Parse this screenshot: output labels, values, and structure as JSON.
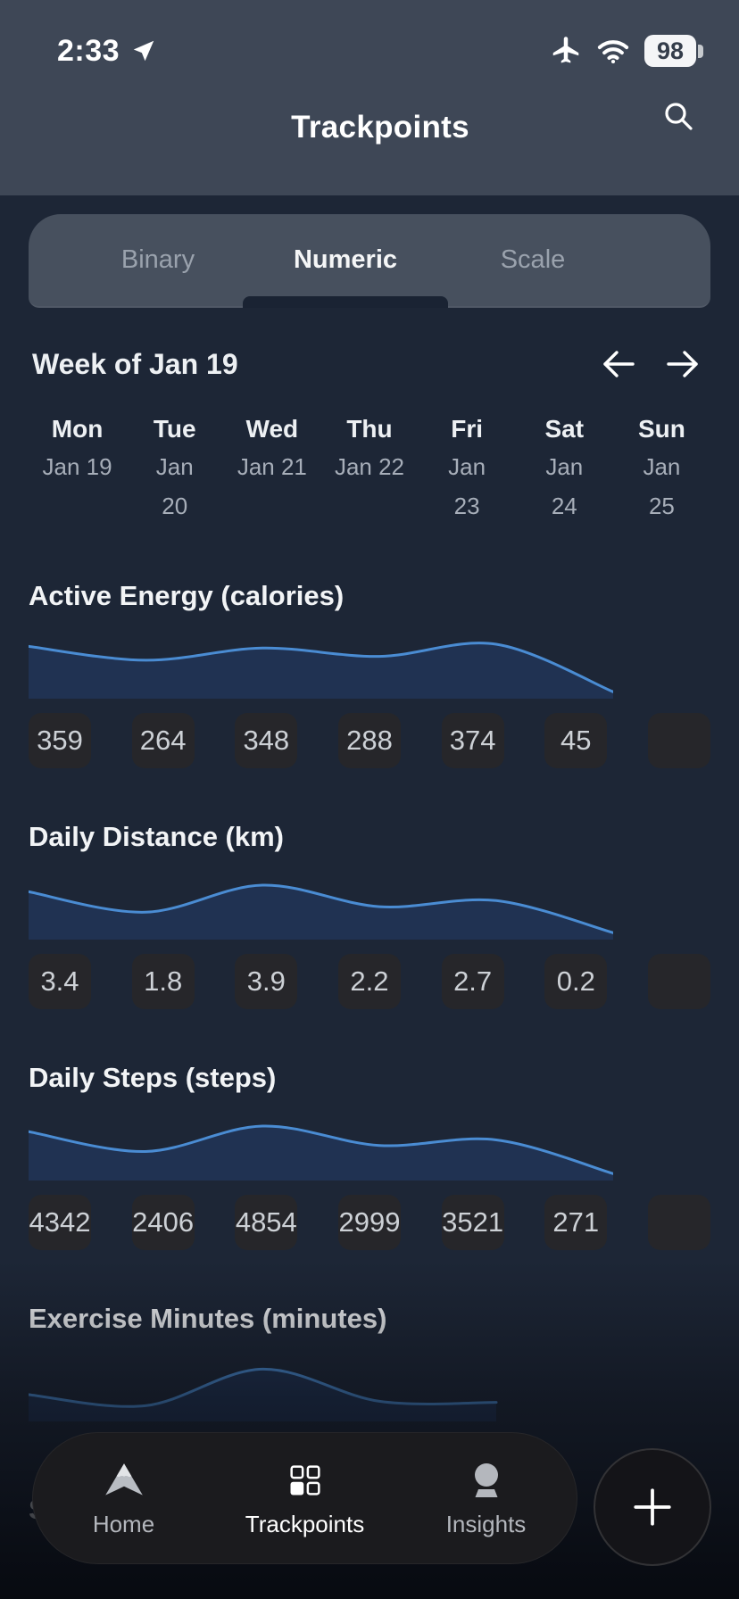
{
  "status_bar": {
    "time": "2:33",
    "battery_level": "98",
    "icons": [
      "location-arrow",
      "airplane-mode",
      "wifi",
      "battery"
    ]
  },
  "header": {
    "title": "Trackpoints",
    "search_icon": "search"
  },
  "tabs": {
    "items": [
      {
        "label": "Binary",
        "active": false
      },
      {
        "label": "Numeric",
        "active": true
      },
      {
        "label": "Scale",
        "active": false
      }
    ]
  },
  "week": {
    "title": "Week of Jan 19",
    "prev_icon": "arrow-left",
    "next_icon": "arrow-right",
    "days": [
      {
        "name": "Mon",
        "date_lines": [
          "Jan 19"
        ]
      },
      {
        "name": "Tue",
        "date_lines": [
          "Jan",
          "20"
        ]
      },
      {
        "name": "Wed",
        "date_lines": [
          "Jan 21"
        ]
      },
      {
        "name": "Thu",
        "date_lines": [
          "Jan 22"
        ]
      },
      {
        "name": "Fri",
        "date_lines": [
          "Jan",
          "23"
        ]
      },
      {
        "name": "Sat",
        "date_lines": [
          "Jan",
          "24"
        ]
      },
      {
        "name": "Sun",
        "date_lines": [
          "Jan",
          "25"
        ]
      }
    ]
  },
  "sections": [
    {
      "title": "Active Energy (calories)",
      "values": [
        "359",
        "264",
        "348",
        "288",
        "374",
        "45",
        ""
      ],
      "chart": {
        "type": "area",
        "shape": [
          0.88,
          0.63,
          0.85,
          0.7,
          0.92,
          0.06
        ]
      }
    },
    {
      "title": "Daily Distance (km)",
      "values": [
        "3.4",
        "1.8",
        "3.9",
        "2.2",
        "2.7",
        "0.2",
        ""
      ],
      "chart": {
        "type": "area",
        "shape": [
          0.8,
          0.43,
          0.92,
          0.53,
          0.64,
          0.06
        ]
      }
    },
    {
      "title": "Daily Steps (steps)",
      "values": [
        "4342",
        "2406",
        "4854",
        "2999",
        "3521",
        "271",
        ""
      ],
      "chart": {
        "type": "area",
        "shape": [
          0.82,
          0.46,
          0.92,
          0.57,
          0.67,
          0.06
        ]
      }
    },
    {
      "title": "Exercise Minutes (minutes)",
      "values": [],
      "chart": {
        "type": "area",
        "shape": [
          0.42,
          0.22,
          0.88,
          0.3,
          0.28
        ]
      }
    },
    {
      "title": "Sleep Duration (hours)",
      "values": [],
      "chart": null
    }
  ],
  "nav": {
    "items": [
      {
        "label": "Home",
        "icon": "mountain",
        "active": false
      },
      {
        "label": "Trackpoints",
        "icon": "grid",
        "active": true
      },
      {
        "label": "Insights",
        "icon": "crystal-ball",
        "active": false
      }
    ]
  },
  "fab": {
    "icon": "plus"
  },
  "colors": {
    "header_bg": "#3E4756",
    "page_bg": "#1D2636",
    "tab_bg": "#47505E",
    "accent": "#4A8CD3",
    "chart_fill": "#203252",
    "chip_bg": "#26262A",
    "nav_bg": "#1B1B1E",
    "fab_bg": "#141418"
  }
}
